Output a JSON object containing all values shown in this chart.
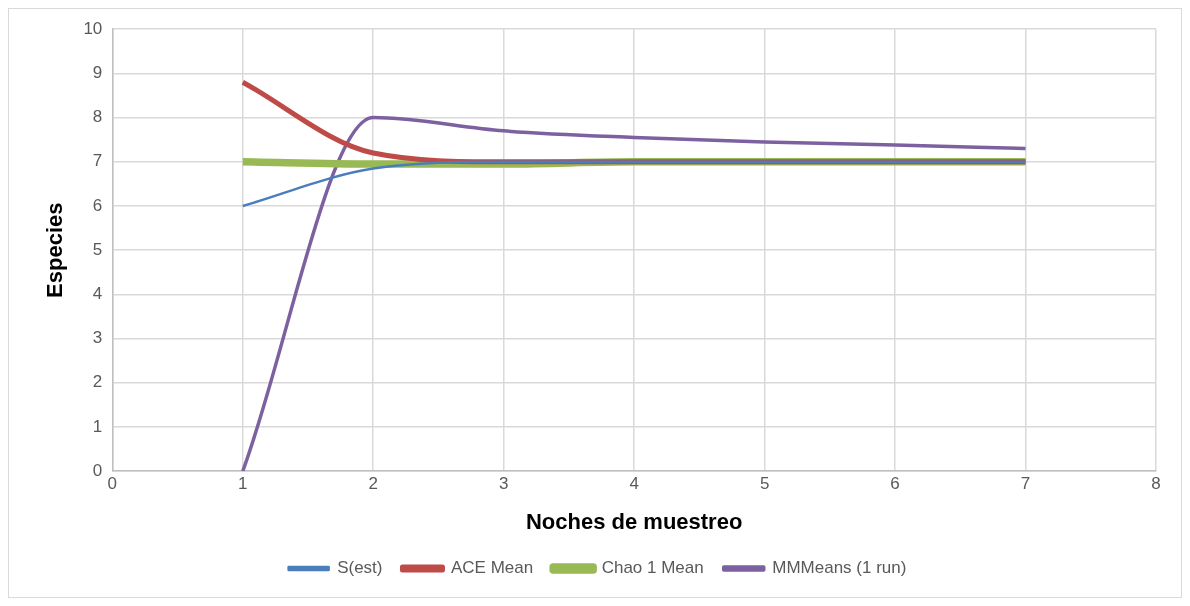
{
  "chart_data": {
    "type": "line",
    "xlabel": "Noches de muestreo",
    "ylabel": "Especies",
    "x": [
      1,
      2,
      3,
      4,
      5,
      6,
      7
    ],
    "xlim": [
      0,
      8
    ],
    "xticks": [
      0,
      1,
      2,
      3,
      4,
      5,
      6,
      7,
      8
    ],
    "ylim": [
      0,
      10
    ],
    "yticks": [
      0,
      1,
      2,
      3,
      4,
      5,
      6,
      7,
      8,
      9,
      10
    ],
    "grid": true,
    "legend": "bottom",
    "marker": "none",
    "line_style": "solid",
    "series": [
      {
        "name": "S(est)",
        "color": "#4a7ebb",
        "values": [
          6,
          6.85,
          7,
          7,
          7,
          7,
          7
        ]
      },
      {
        "name": "ACE Mean",
        "color": "#be4b48",
        "values": [
          8.8,
          7.2,
          7,
          7,
          7,
          7,
          7
        ]
      },
      {
        "name": "Chao 1 Mean",
        "color": "#98b954",
        "values": [
          7,
          6.95,
          6.95,
          7,
          7,
          7,
          7
        ]
      },
      {
        "name": "MMMeans (1 run)",
        "color": "#7d60a0",
        "values": [
          0,
          8,
          7.7,
          7.55,
          7.45,
          7.38,
          7.3
        ]
      }
    ]
  }
}
